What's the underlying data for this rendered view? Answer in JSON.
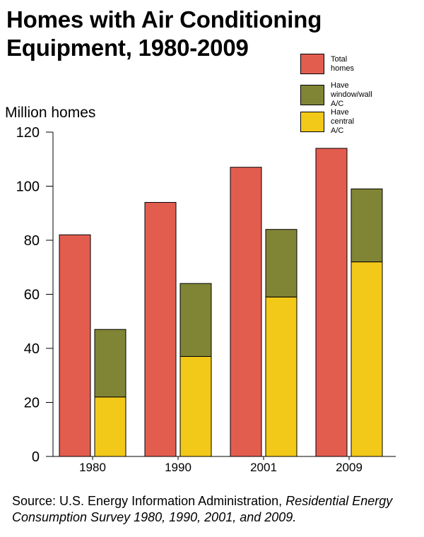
{
  "title_lines": [
    "Homes with Air Conditioning",
    "Equipment, 1980-2009"
  ],
  "source": {
    "prefix": "Source: U.S. Energy Information Administration, ",
    "italic": "Residential Energy Consumption Survey 1980, 1990, 2001, and 2009."
  },
  "colors": {
    "total": "#e35d4f",
    "window": "#808536",
    "central": "#f2c919"
  },
  "legend": [
    {
      "label": "Total homes",
      "color_key": "total"
    },
    {
      "label": "Have window/wall A/C",
      "color_key": "window"
    },
    {
      "label": "Have central A/C",
      "color_key": "central"
    }
  ],
  "chart_data": {
    "type": "bar",
    "title": "Homes with Air Conditioning Equipment, 1980-2009",
    "ylabel": "Million homes",
    "xlabel": "",
    "ylim": [
      0,
      120
    ],
    "yticks": [
      0,
      20,
      40,
      60,
      80,
      100,
      120
    ],
    "categories": [
      "1980",
      "1990",
      "2001",
      "2009"
    ],
    "series": [
      {
        "name": "Total homes",
        "values": [
          82,
          94,
          107,
          114
        ]
      },
      {
        "name": "Have central A/C",
        "values": [
          22,
          37,
          59,
          72
        ],
        "stack": "ac"
      },
      {
        "name": "Have window/wall A/C",
        "values": [
          25,
          27,
          25,
          27
        ],
        "stack": "ac"
      }
    ],
    "grid": false,
    "legend": "top-right"
  }
}
